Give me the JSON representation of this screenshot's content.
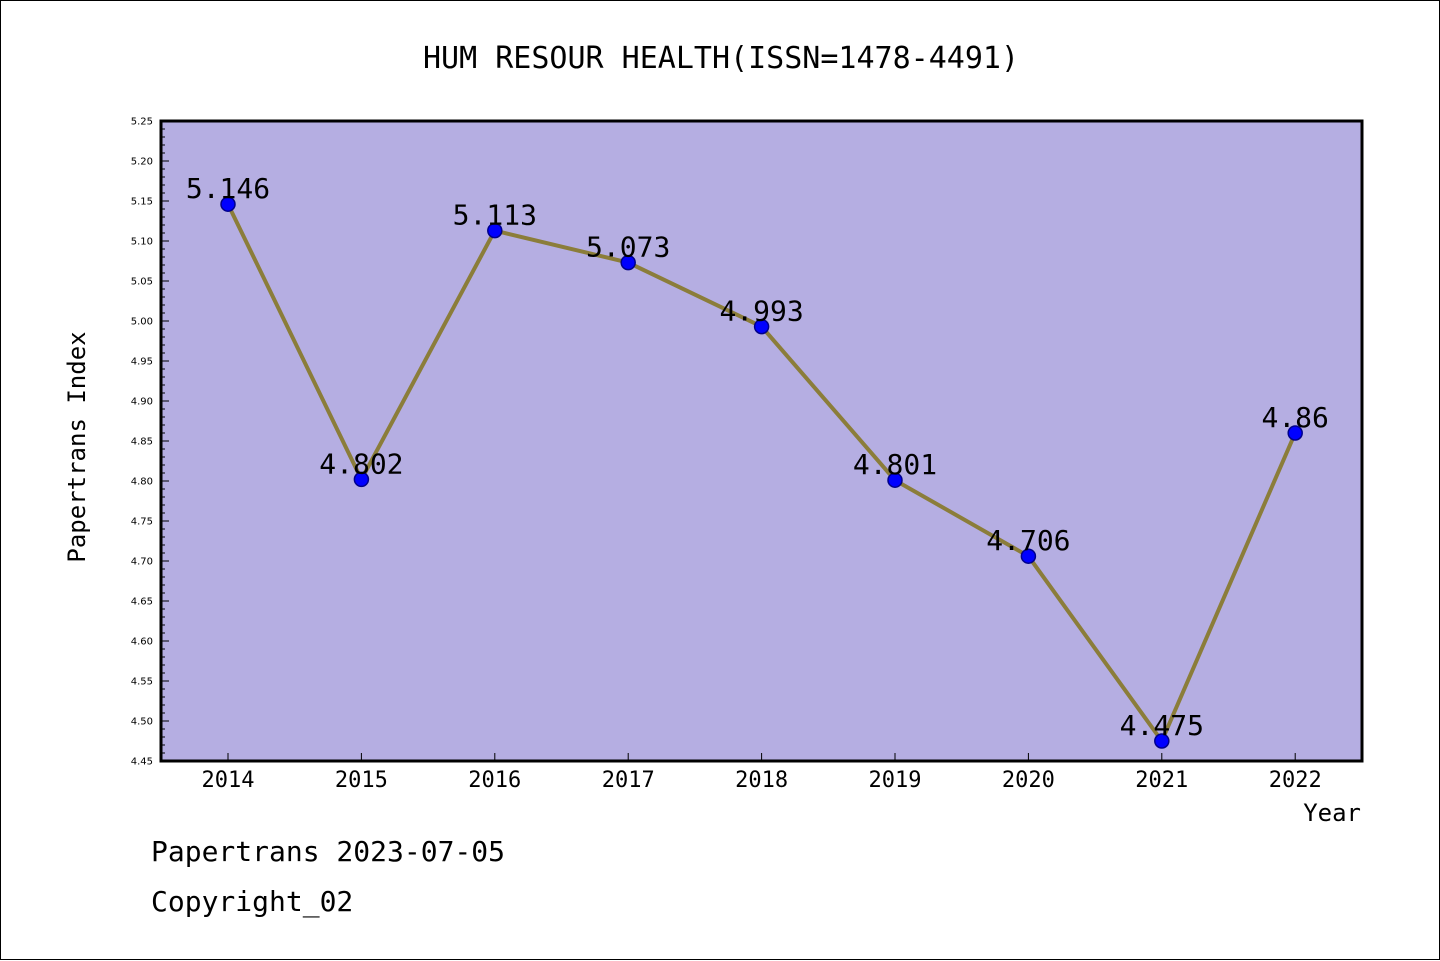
{
  "chart_data": {
    "type": "line",
    "title": "HUM RESOUR HEALTH(ISSN=1478-4491)",
    "xlabel": "Year",
    "ylabel": "Papertrans Index",
    "categories": [
      "2014",
      "2015",
      "2016",
      "2017",
      "2018",
      "2019",
      "2020",
      "2021",
      "2022"
    ],
    "series": [
      {
        "values": [
          5.146,
          4.802,
          5.113,
          5.073,
          4.993,
          4.801,
          4.706,
          4.475,
          4.86
        ],
        "labels": [
          "5.146",
          "4.802",
          "5.113",
          "5.073",
          "4.993",
          "4.801",
          "4.706",
          "4.475",
          "4.86"
        ]
      }
    ],
    "ylim": [
      4.45,
      5.25
    ],
    "yticks": [
      "4.45",
      "4.50",
      "4.55",
      "4.60",
      "4.65",
      "4.70",
      "4.75",
      "4.80",
      "4.85",
      "4.90",
      "4.95",
      "5.00",
      "5.05",
      "5.10",
      "5.15",
      "5.20",
      "5.25"
    ],
    "grid": false,
    "legend": "none",
    "colors": {
      "plot_background": "#b5aee2",
      "line": "#8b7d3a",
      "marker_fill": "#0000ff",
      "marker_stroke": "#00008b"
    }
  },
  "footer": {
    "line1": "Papertrans 2023-07-05",
    "line2": "Copyright_02"
  }
}
